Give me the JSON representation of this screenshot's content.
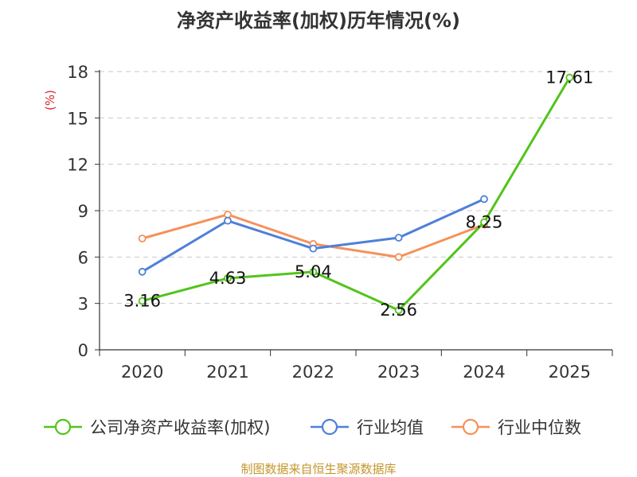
{
  "chart_data": {
    "type": "line",
    "title": "净资产收益率(加权)历年情况(%)",
    "ylabel": "(%)",
    "xlabel": "",
    "ylim": [
      0,
      18
    ],
    "yticks": [
      0,
      3,
      6,
      9,
      12,
      15,
      18
    ],
    "categories": [
      "2020",
      "2021",
      "2022",
      "2023",
      "2024",
      "2025"
    ],
    "grid": true,
    "legend_position": "bottom",
    "series": [
      {
        "name": "公司净资产收益率(加权)",
        "color": "#52c41a",
        "values": [
          3.16,
          4.63,
          5.04,
          2.56,
          8.25,
          17.61
        ],
        "labels": [
          "3.16",
          "4.63",
          "5.04",
          "2.56",
          "8.25",
          "17.61"
        ]
      },
      {
        "name": "行业均值",
        "color": "#4f80d8",
        "values": [
          5.05,
          8.35,
          6.55,
          7.25,
          9.75,
          null
        ]
      },
      {
        "name": "行业中位数",
        "color": "#f5915a",
        "values": [
          7.2,
          8.75,
          6.85,
          6.0,
          8.1,
          null
        ]
      }
    ]
  },
  "footer": {
    "source": "制图数据来自恒生聚源数据库"
  }
}
